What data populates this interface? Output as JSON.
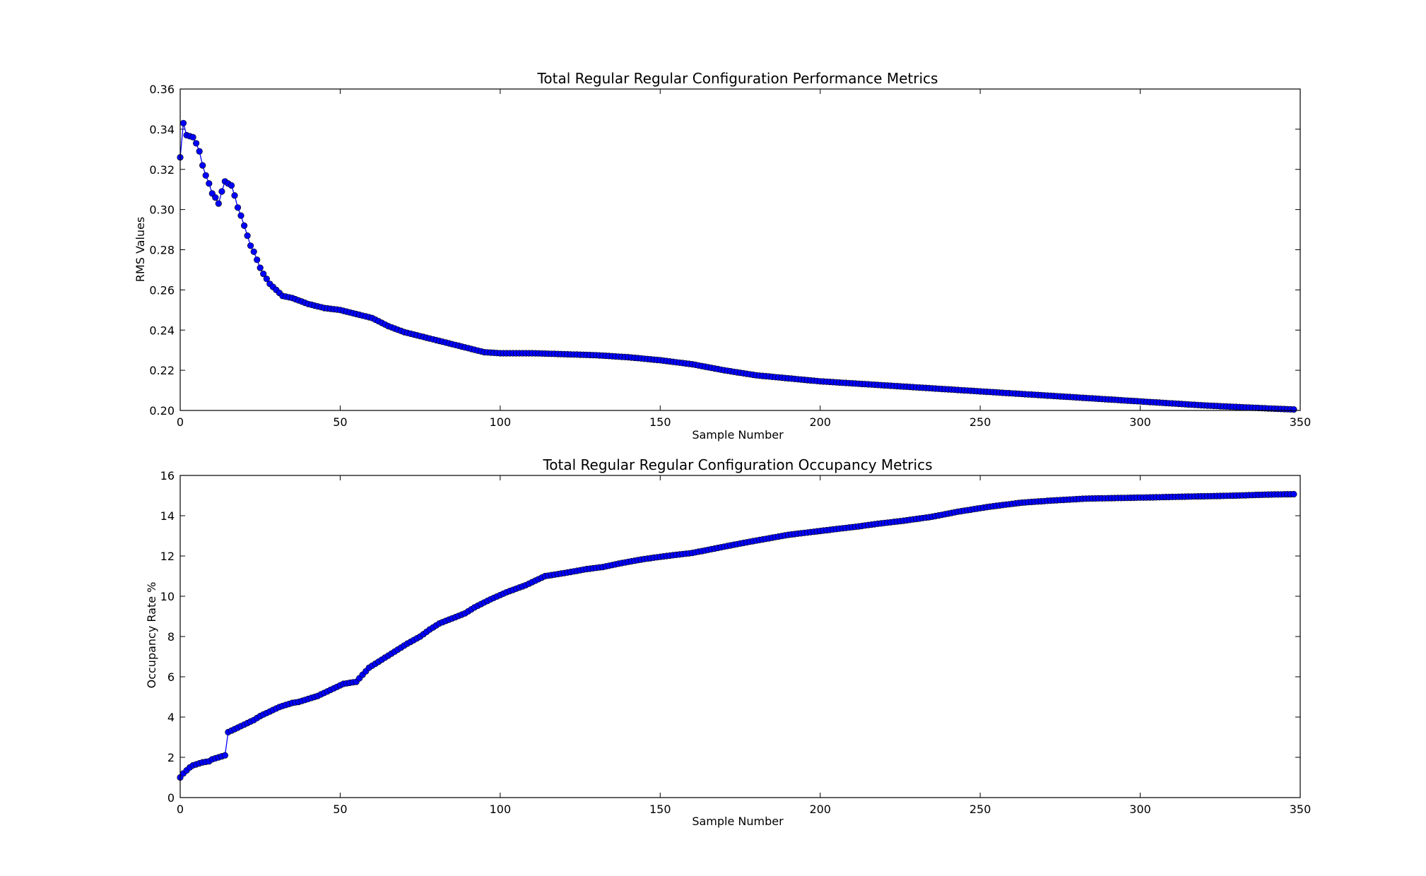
{
  "chart_data": [
    {
      "type": "line",
      "title": "Total Regular Regular   Configuration Performance  Metrics",
      "xlabel": "Sample Number",
      "ylabel": "RMS Values",
      "xlim": [
        0,
        350
      ],
      "ylim": [
        0.2,
        0.36
      ],
      "xticks": [
        0,
        50,
        100,
        150,
        200,
        250,
        300,
        350
      ],
      "yticks": [
        0.2,
        0.22,
        0.24,
        0.26,
        0.28,
        0.3,
        0.32,
        0.34,
        0.36
      ],
      "ytick_decimals": 2,
      "grid": false,
      "marker": "circle",
      "series": [
        {
          "color": "#0000ff",
          "anchors": [
            [
              0,
              0.326
            ],
            [
              1,
              0.343
            ],
            [
              2,
              0.337
            ],
            [
              4,
              0.336
            ],
            [
              5,
              0.333
            ],
            [
              6,
              0.329
            ],
            [
              7,
              0.322
            ],
            [
              8,
              0.317
            ],
            [
              9,
              0.313
            ],
            [
              10,
              0.308
            ],
            [
              11,
              0.306
            ],
            [
              12,
              0.303
            ],
            [
              13,
              0.309
            ],
            [
              14,
              0.314
            ],
            [
              15,
              0.313
            ],
            [
              16,
              0.312
            ],
            [
              17,
              0.307
            ],
            [
              18,
              0.301
            ],
            [
              19,
              0.297
            ],
            [
              20,
              0.292
            ],
            [
              21,
              0.287
            ],
            [
              22,
              0.282
            ],
            [
              23,
              0.279
            ],
            [
              24,
              0.275
            ],
            [
              25,
              0.271
            ],
            [
              26,
              0.268
            ],
            [
              28,
              0.263
            ],
            [
              30,
              0.26
            ],
            [
              32,
              0.257
            ],
            [
              35,
              0.256
            ],
            [
              40,
              0.253
            ],
            [
              45,
              0.251
            ],
            [
              50,
              0.25
            ],
            [
              55,
              0.248
            ],
            [
              60,
              0.246
            ],
            [
              65,
              0.242
            ],
            [
              70,
              0.239
            ],
            [
              75,
              0.237
            ],
            [
              80,
              0.235
            ],
            [
              85,
              0.233
            ],
            [
              90,
              0.231
            ],
            [
              95,
              0.229
            ],
            [
              100,
              0.2285
            ],
            [
              110,
              0.2285
            ],
            [
              120,
              0.228
            ],
            [
              130,
              0.2275
            ],
            [
              140,
              0.2265
            ],
            [
              150,
              0.225
            ],
            [
              160,
              0.223
            ],
            [
              170,
              0.22
            ],
            [
              180,
              0.2175
            ],
            [
              190,
              0.216
            ],
            [
              200,
              0.2145
            ],
            [
              220,
              0.2125
            ],
            [
              240,
              0.2105
            ],
            [
              260,
              0.2085
            ],
            [
              280,
              0.2065
            ],
            [
              300,
              0.2045
            ],
            [
              320,
              0.2025
            ],
            [
              340,
              0.201
            ],
            [
              348,
              0.2005
            ]
          ]
        }
      ]
    },
    {
      "type": "line",
      "title": "Total Regular Regular   Configuration  Occupancy Metrics",
      "xlabel": "Sample Number",
      "ylabel": "Occupancy Rate  %",
      "xlim": [
        0,
        350
      ],
      "ylim": [
        0,
        16
      ],
      "xticks": [
        0,
        50,
        100,
        150,
        200,
        250,
        300,
        350
      ],
      "yticks": [
        0,
        2,
        4,
        6,
        8,
        10,
        12,
        14,
        16
      ],
      "ytick_decimals": 0,
      "grid": false,
      "marker": "circle",
      "series": [
        {
          "color": "#0000ff",
          "anchors": [
            [
              0,
              1.0
            ],
            [
              1,
              1.2
            ],
            [
              2,
              1.35
            ],
            [
              3,
              1.5
            ],
            [
              4,
              1.6
            ],
            [
              5,
              1.65
            ],
            [
              7,
              1.75
            ],
            [
              9,
              1.8
            ],
            [
              10,
              1.9
            ],
            [
              12,
              2.0
            ],
            [
              14,
              2.1
            ],
            [
              15,
              3.25
            ],
            [
              17,
              3.4
            ],
            [
              19,
              3.55
            ],
            [
              21,
              3.7
            ],
            [
              23,
              3.85
            ],
            [
              25,
              4.05
            ],
            [
              27,
              4.2
            ],
            [
              29,
              4.35
            ],
            [
              31,
              4.5
            ],
            [
              33,
              4.6
            ],
            [
              35,
              4.7
            ],
            [
              37,
              4.75
            ],
            [
              39,
              4.85
            ],
            [
              41,
              4.95
            ],
            [
              43,
              5.05
            ],
            [
              45,
              5.2
            ],
            [
              47,
              5.35
            ],
            [
              49,
              5.5
            ],
            [
              51,
              5.65
            ],
            [
              55,
              5.75
            ],
            [
              57,
              6.1
            ],
            [
              59,
              6.45
            ],
            [
              62,
              6.75
            ],
            [
              65,
              7.05
            ],
            [
              68,
              7.35
            ],
            [
              71,
              7.65
            ],
            [
              75,
              8.0
            ],
            [
              78,
              8.35
            ],
            [
              81,
              8.65
            ],
            [
              85,
              8.9
            ],
            [
              89,
              9.15
            ],
            [
              92,
              9.45
            ],
            [
              97,
              9.85
            ],
            [
              102,
              10.2
            ],
            [
              108,
              10.55
            ],
            [
              114,
              11.0
            ],
            [
              120,
              11.15
            ],
            [
              127,
              11.35
            ],
            [
              132,
              11.45
            ],
            [
              138,
              11.65
            ],
            [
              145,
              11.85
            ],
            [
              152,
              12.0
            ],
            [
              160,
              12.15
            ],
            [
              168,
              12.4
            ],
            [
              176,
              12.65
            ],
            [
              183,
              12.85
            ],
            [
              190,
              13.05
            ],
            [
              203,
              13.3
            ],
            [
              211,
              13.45
            ],
            [
              218,
              13.6
            ],
            [
              226,
              13.75
            ],
            [
              235,
              13.95
            ],
            [
              243,
              14.2
            ],
            [
              253,
              14.45
            ],
            [
              263,
              14.65
            ],
            [
              272,
              14.75
            ],
            [
              283,
              14.85
            ],
            [
              300,
              14.9
            ],
            [
              315,
              14.95
            ],
            [
              330,
              15.0
            ],
            [
              340,
              15.05
            ],
            [
              348,
              15.07
            ]
          ]
        }
      ]
    }
  ]
}
